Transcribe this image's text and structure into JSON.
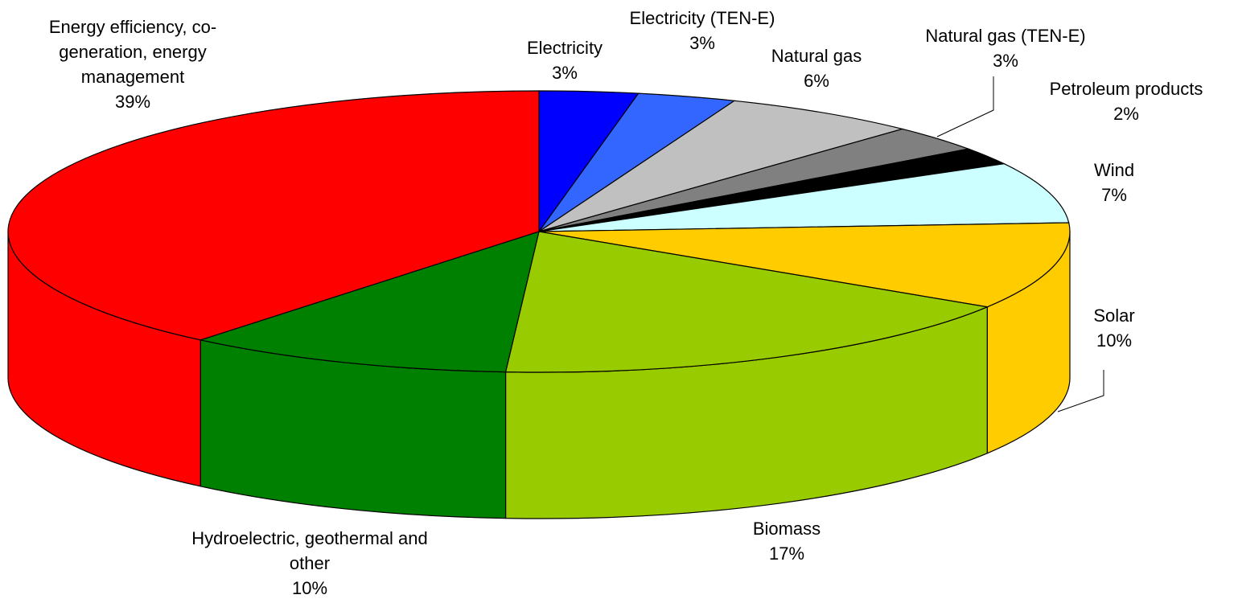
{
  "chart_data": {
    "type": "pie3d",
    "categories": [
      "Electricity",
      "Electricity (TEN-E)",
      "Natural gas",
      "Natural gas (TEN-E)",
      "Petroleum products",
      "Wind",
      "Solar",
      "Biomass",
      "Hydroelectric, geothermal and other",
      "Energy efficiency, co-generation, energy management"
    ],
    "values": [
      3,
      3,
      6,
      3,
      2,
      7,
      10,
      17,
      10,
      39
    ],
    "value_labels": [
      "3%",
      "3%",
      "6%",
      "3%",
      "2%",
      "7%",
      "10%",
      "17%",
      "10%",
      "39%"
    ],
    "colors": [
      "#0000ff",
      "#3366ff",
      "#c0c0c0",
      "#808080",
      "#000000",
      "#ccffff",
      "#ffcc00",
      "#99cc00",
      "#008000",
      "#ff0000"
    ]
  }
}
